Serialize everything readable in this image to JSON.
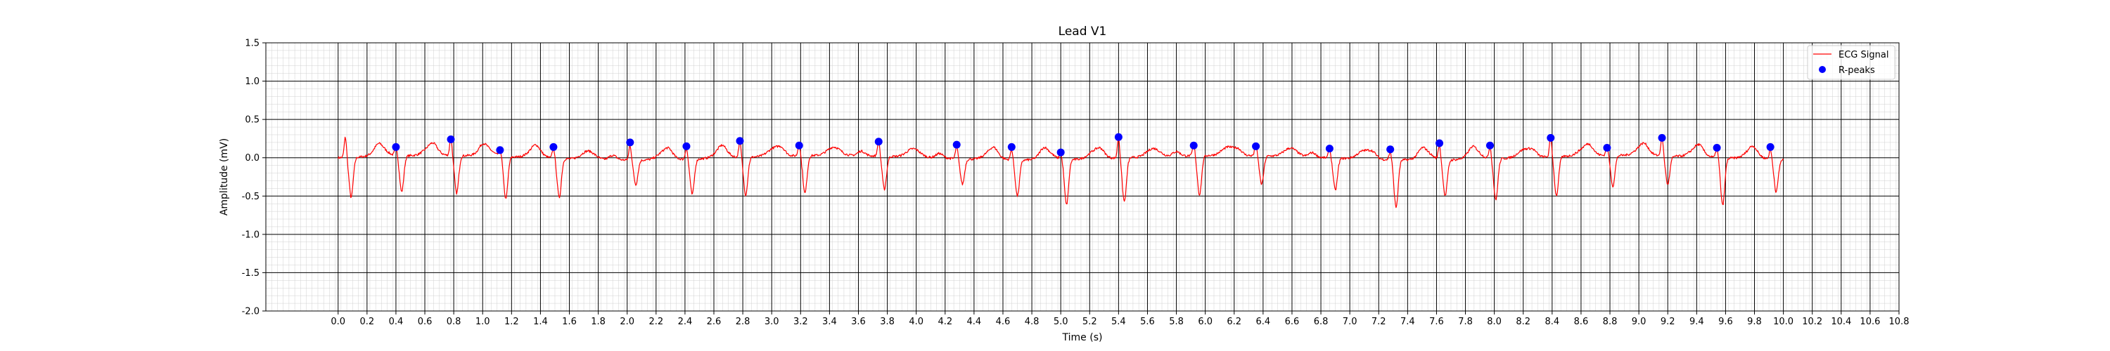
{
  "chart_data": {
    "type": "line",
    "title": "Lead V1",
    "xlabel": "Time (s)",
    "ylabel": "Amplitude (mV)",
    "xlim": [
      -0.5,
      10.8
    ],
    "ylim": [
      -2.0,
      1.5
    ],
    "x_ticks": [
      0.0,
      0.2,
      0.4,
      0.6,
      0.8,
      1.0,
      1.2,
      1.4,
      1.6,
      1.8,
      2.0,
      2.2,
      2.4,
      2.6,
      2.8,
      3.0,
      3.2,
      3.4,
      3.6,
      3.8,
      4.0,
      4.2,
      4.4,
      4.6,
      4.8,
      5.0,
      5.2,
      5.4,
      5.6,
      5.8,
      6.0,
      6.2,
      6.4,
      6.6,
      6.8,
      7.0,
      7.2,
      7.4,
      7.6,
      7.8,
      8.0,
      8.2,
      8.4,
      8.6,
      8.8,
      9.0,
      9.2,
      9.4,
      9.6,
      9.8,
      10.0,
      10.2,
      10.4,
      10.6,
      10.8
    ],
    "y_ticks": [
      -2.0,
      -1.5,
      -1.0,
      -0.5,
      0.0,
      0.5,
      1.0,
      1.5
    ],
    "grid": "ecg-paper (major + minor)",
    "legend_position": "top-right",
    "series": [
      {
        "name": "ECG Signal",
        "style": "line",
        "color": "#ff0000",
        "duration_s": 10.0,
        "beats": [
          {
            "t": 0.05,
            "r": 0.27,
            "s": -0.5
          },
          {
            "t": 0.4,
            "r": 0.14,
            "s": -0.45
          },
          {
            "t": 0.78,
            "r": 0.24,
            "s": -0.47
          },
          {
            "t": 1.12,
            "r": 0.1,
            "s": -0.53
          },
          {
            "t": 1.49,
            "r": 0.14,
            "s": -0.49
          },
          {
            "t": 2.02,
            "r": 0.2,
            "s": -0.3
          },
          {
            "t": 2.41,
            "r": 0.15,
            "s": -0.44
          },
          {
            "t": 2.78,
            "r": 0.22,
            "s": -0.47
          },
          {
            "t": 3.19,
            "r": 0.16,
            "s": -0.47
          },
          {
            "t": 3.74,
            "r": 0.21,
            "s": -0.41
          },
          {
            "t": 4.28,
            "r": 0.17,
            "s": -0.31
          },
          {
            "t": 4.66,
            "r": 0.14,
            "s": -0.45
          },
          {
            "t": 5.0,
            "r": 0.07,
            "s": -0.57
          },
          {
            "t": 5.4,
            "r": 0.27,
            "s": -0.55
          },
          {
            "t": 5.92,
            "r": 0.16,
            "s": -0.49
          },
          {
            "t": 6.35,
            "r": 0.15,
            "s": -0.35
          },
          {
            "t": 6.86,
            "r": 0.12,
            "s": -0.4
          },
          {
            "t": 7.28,
            "r": 0.11,
            "s": -0.6
          },
          {
            "t": 7.62,
            "r": 0.19,
            "s": -0.45
          },
          {
            "t": 7.97,
            "r": 0.16,
            "s": -0.52
          },
          {
            "t": 8.39,
            "r": 0.26,
            "s": -0.49
          },
          {
            "t": 8.78,
            "r": 0.13,
            "s": -0.38
          },
          {
            "t": 9.16,
            "r": 0.26,
            "s": -0.35
          },
          {
            "t": 9.54,
            "r": 0.13,
            "s": -0.6
          },
          {
            "t": 9.91,
            "r": 0.14,
            "s": -0.4
          }
        ]
      },
      {
        "name": "R-peaks",
        "style": "scatter",
        "color": "#0000ff",
        "points": [
          [
            0.4,
            0.14
          ],
          [
            0.78,
            0.24
          ],
          [
            1.12,
            0.1
          ],
          [
            1.49,
            0.14
          ],
          [
            2.02,
            0.2
          ],
          [
            2.41,
            0.15
          ],
          [
            2.78,
            0.22
          ],
          [
            3.19,
            0.16
          ],
          [
            3.74,
            0.21
          ],
          [
            4.28,
            0.17
          ],
          [
            4.66,
            0.14
          ],
          [
            5.0,
            0.07
          ],
          [
            5.4,
            0.27
          ],
          [
            5.92,
            0.16
          ],
          [
            6.35,
            0.15
          ],
          [
            6.86,
            0.12
          ],
          [
            7.28,
            0.11
          ],
          [
            7.62,
            0.19
          ],
          [
            7.97,
            0.16
          ],
          [
            8.39,
            0.26
          ],
          [
            8.78,
            0.13
          ],
          [
            9.16,
            0.26
          ],
          [
            9.54,
            0.13
          ],
          [
            9.91,
            0.14
          ]
        ]
      }
    ]
  }
}
